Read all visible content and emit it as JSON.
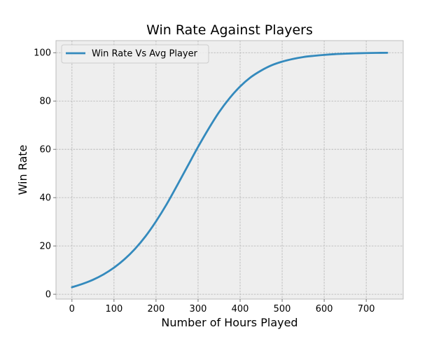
{
  "chart_data": {
    "type": "line",
    "title": "Win Rate Against Players",
    "xlabel": "Number of Hours Played",
    "ylabel": "Win Rate",
    "xlim": [
      -38,
      788
    ],
    "ylim": [
      -2,
      105
    ],
    "xticks": [
      0,
      100,
      200,
      300,
      400,
      500,
      600,
      700
    ],
    "yticks": [
      0,
      20,
      40,
      60,
      80,
      100
    ],
    "grid": true,
    "legend_position": "top-left",
    "series": [
      {
        "name": "Win Rate Vs Avg Player",
        "color": "#348ABD",
        "x": [
          0,
          25,
          50,
          75,
          100,
          125,
          150,
          175,
          200,
          225,
          250,
          275,
          300,
          325,
          350,
          375,
          400,
          425,
          450,
          475,
          500,
          525,
          550,
          575,
          600,
          625,
          650,
          675,
          700,
          725,
          750
        ],
        "y": [
          2.9,
          4.3,
          6.0,
          8.2,
          11.0,
          14.5,
          18.8,
          24.0,
          30.2,
          37.2,
          45.0,
          53.0,
          61.0,
          68.5,
          75.4,
          81.2,
          86.0,
          89.8,
          92.6,
          94.8,
          96.3,
          97.4,
          98.2,
          98.7,
          99.1,
          99.4,
          99.6,
          99.75,
          99.85,
          99.92,
          99.97
        ]
      }
    ]
  },
  "colors": {
    "plot_background": "#EEEEEE",
    "grid": "#B2B2B2",
    "frame": "#BCBCBC"
  }
}
